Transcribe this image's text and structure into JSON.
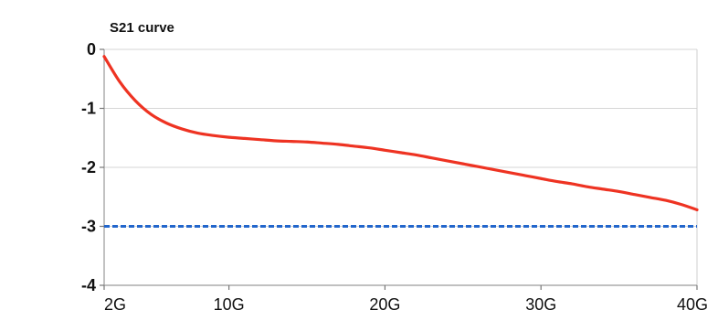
{
  "chart_data": {
    "type": "line",
    "title": "S21 curve",
    "xlabel": "",
    "ylabel": "",
    "x_ticks": [
      {
        "value": 2,
        "label": "2G"
      },
      {
        "value": 10,
        "label": "10G"
      },
      {
        "value": 20,
        "label": "20G"
      },
      {
        "value": 30,
        "label": "30G"
      },
      {
        "value": 40,
        "label": "40G"
      }
    ],
    "y_ticks": [
      {
        "value": 0,
        "label": "0"
      },
      {
        "value": -1,
        "label": "-1"
      },
      {
        "value": -2,
        "label": "-2"
      },
      {
        "value": -3,
        "label": "-3"
      },
      {
        "value": -4,
        "label": "-4"
      }
    ],
    "xlim": [
      2,
      40
    ],
    "ylim": [
      -4,
      0
    ],
    "grid": true,
    "series": [
      {
        "color": "#ee3322",
        "style": "solid",
        "x": [
          2,
          3,
          4,
          5,
          6,
          7,
          8,
          9,
          10,
          11,
          12,
          13,
          14,
          15,
          16,
          17,
          18,
          19,
          20,
          21,
          22,
          23,
          24,
          25,
          26,
          27,
          28,
          29,
          30,
          31,
          32,
          33,
          34,
          35,
          36,
          37,
          38,
          39,
          40
        ],
        "y": [
          -0.12,
          -0.55,
          -0.87,
          -1.1,
          -1.25,
          -1.35,
          -1.42,
          -1.46,
          -1.49,
          -1.51,
          -1.53,
          -1.55,
          -1.56,
          -1.57,
          -1.59,
          -1.61,
          -1.64,
          -1.67,
          -1.71,
          -1.75,
          -1.79,
          -1.84,
          -1.89,
          -1.94,
          -1.99,
          -2.04,
          -2.09,
          -2.14,
          -2.19,
          -2.24,
          -2.28,
          -2.33,
          -2.37,
          -2.41,
          -2.46,
          -2.51,
          -2.56,
          -2.63,
          -2.72
        ]
      },
      {
        "color": "#2266cc",
        "style": "dashed",
        "x": [
          2,
          40
        ],
        "y": [
          -3,
          -3
        ]
      }
    ]
  }
}
